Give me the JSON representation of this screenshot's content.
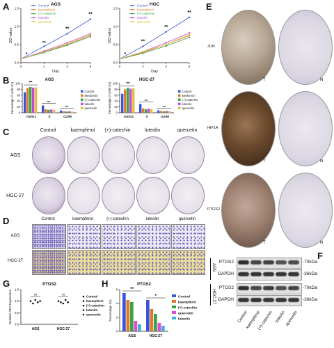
{
  "panel_labels": {
    "A": "A",
    "B": "B",
    "C": "C",
    "D": "D",
    "E": "E",
    "F": "F",
    "G": "G",
    "H": "H"
  },
  "panelA": {
    "left": {
      "title": "AGS",
      "ylabel": "OD value",
      "xlabel": "Day",
      "yticks": [
        "0.0",
        "0.5",
        "1.0",
        "1.5"
      ],
      "xticks": [
        "0",
        "2",
        "4",
        "6"
      ],
      "sig": [
        "*",
        "ns",
        "**",
        "**"
      ]
    },
    "right": {
      "title": "HGC",
      "ylabel": "OD value",
      "xlabel": "Day",
      "yticks": [
        "0.0",
        "0.5",
        "1.0",
        "1.5"
      ],
      "xticks": [
        "0",
        "2",
        "4",
        "6"
      ],
      "sig": [
        "*",
        "**",
        "**",
        "**"
      ]
    },
    "legend": [
      "Control",
      "kaempferol",
      "(+)-catechin",
      "luteolin",
      "quercetin"
    ],
    "colors": [
      "#3a54d6",
      "#e07a2a",
      "#3aa14a",
      "#c24ad6",
      "#e0c23a"
    ]
  },
  "panelB": {
    "left": {
      "title": "AGS",
      "ylabel": "Percentage of cells (%)",
      "yticks": [
        "0",
        "20",
        "40",
        "60",
        "80",
        "100"
      ],
      "categories": [
        "G0/G1",
        "S",
        "G2/M"
      ],
      "sig": [
        "**",
        "ns",
        "ns"
      ]
    },
    "right": {
      "title": "HGC-27",
      "ylabel": "Percentage of cells (%)",
      "yticks": [
        "0",
        "20",
        "40",
        "60",
        "80",
        "100"
      ],
      "categories": [
        "G0/G1",
        "S",
        "G2/M"
      ],
      "sig": [
        "**",
        "ns",
        "ns"
      ]
    },
    "legend": [
      "Control",
      "Metformin",
      "(+)-catechin",
      "luteolin",
      "quercetin"
    ],
    "colors": [
      "#3a54d6",
      "#e07a2a",
      "#3aa14a",
      "#c24ad6",
      "#e0c23a"
    ]
  },
  "panelC": {
    "columns": [
      "Control",
      "kaempferol",
      "(+)-catechin",
      "luteolin",
      "quercetin"
    ],
    "rows": [
      "AGS",
      "HGC-27"
    ]
  },
  "panelD": {
    "columns": [
      "Control",
      "kaempferol",
      "(+)-catechin",
      "luteolin",
      "quercetin"
    ],
    "rows": [
      "AGS",
      "HGC-27"
    ]
  },
  "panelE": {
    "rows": [
      "JUN",
      "HIF1A",
      "PTGS2"
    ],
    "T": "T",
    "N": "N"
  },
  "panelF": {
    "bands": [
      "PTGS2",
      "GAPDH",
      "PTGS2",
      "GAPDH"
    ],
    "kda": [
      "-70kDa",
      "-36kDa",
      "-70kDa",
      "-36kDa"
    ],
    "groups": [
      "AGS",
      "HGC-27"
    ],
    "lanes": [
      "Control",
      "kaempferol",
      "(+)-catechin",
      "luteolin",
      "quercetin"
    ]
  },
  "panelG": {
    "title": "PTGS2",
    "ylabel": "Relative RNA Expression",
    "yticks": [
      "0.0",
      "0.5",
      "1.0",
      "1.5"
    ],
    "categories": [
      "AGS",
      "HGC-27"
    ],
    "sig": [
      "ns",
      "ns"
    ],
    "legend": [
      "Control",
      "kaempferol",
      "(+)-catechin",
      "luteolin",
      "quercetin"
    ]
  },
  "panelH": {
    "title": "PTGS2",
    "ylabel": "Percentage (%)",
    "yticks": [
      "0",
      "2",
      "4",
      "6"
    ],
    "categories": [
      "AGS",
      "HGC-27"
    ],
    "sig": [
      "**",
      "*"
    ],
    "legend": [
      "Control",
      "kaempferol",
      "(+)-catechin",
      "quercetin",
      "luteolin"
    ],
    "colors": [
      "#3a54d6",
      "#e07a2a",
      "#3aa14a",
      "#e04ad6",
      "#3ab0e0"
    ]
  },
  "chart_data": [
    {
      "type": "line",
      "title": "AGS",
      "xlabel": "Day",
      "ylabel": "OD value",
      "x": [
        0,
        2,
        4,
        6
      ],
      "series": [
        {
          "name": "Control",
          "values": [
            0.1,
            0.45,
            0.8,
            1.2
          ]
        },
        {
          "name": "kaempferol",
          "values": [
            0.1,
            0.3,
            0.5,
            0.75
          ]
        },
        {
          "name": "(+)-catechin",
          "values": [
            0.1,
            0.28,
            0.48,
            0.72
          ]
        },
        {
          "name": "luteolin",
          "values": [
            0.1,
            0.32,
            0.55,
            0.8
          ]
        },
        {
          "name": "quercetin",
          "values": [
            0.1,
            0.3,
            0.52,
            0.78
          ]
        }
      ]
    },
    {
      "type": "line",
      "title": "HGC",
      "xlabel": "Day",
      "ylabel": "OD value",
      "x": [
        0,
        2,
        4,
        6
      ],
      "series": [
        {
          "name": "Control",
          "values": [
            0.1,
            0.45,
            0.85,
            1.25
          ]
        },
        {
          "name": "kaempferol",
          "values": [
            0.1,
            0.28,
            0.5,
            0.75
          ]
        },
        {
          "name": "(+)-catechin",
          "values": [
            0.1,
            0.26,
            0.46,
            0.7
          ]
        },
        {
          "name": "luteolin",
          "values": [
            0.1,
            0.3,
            0.55,
            0.82
          ]
        },
        {
          "name": "quercetin",
          "values": [
            0.1,
            0.3,
            0.5,
            0.78
          ]
        }
      ]
    },
    {
      "type": "bar",
      "title": "AGS",
      "ylabel": "Percentage of cells (%)",
      "categories": [
        "G0/G1",
        "S",
        "G2/M"
      ],
      "series": [
        {
          "name": "Control",
          "values": [
            70,
            25,
            8
          ]
        },
        {
          "name": "Metformin",
          "values": [
            85,
            12,
            5
          ]
        },
        {
          "name": "(+)-catechin",
          "values": [
            88,
            10,
            4
          ]
        },
        {
          "name": "luteolin",
          "values": [
            86,
            11,
            5
          ]
        },
        {
          "name": "quercetin",
          "values": [
            87,
            10,
            4
          ]
        }
      ]
    },
    {
      "type": "bar",
      "title": "HGC-27",
      "ylabel": "Percentage of cells (%)",
      "categories": [
        "G0/G1",
        "S",
        "G2/M"
      ],
      "series": [
        {
          "name": "Control",
          "values": [
            65,
            30,
            8
          ]
        },
        {
          "name": "Metformin",
          "values": [
            80,
            15,
            6
          ]
        },
        {
          "name": "(+)-catechin",
          "values": [
            85,
            12,
            5
          ]
        },
        {
          "name": "luteolin",
          "values": [
            82,
            14,
            6
          ]
        },
        {
          "name": "quercetin",
          "values": [
            84,
            12,
            5
          ]
        }
      ]
    },
    {
      "type": "scatter",
      "title": "PTGS2",
      "ylabel": "Relative RNA Expression",
      "categories": [
        "AGS",
        "HGC-27"
      ],
      "series": [
        {
          "name": "Control",
          "values": [
            1.0,
            1.0
          ]
        },
        {
          "name": "kaempferol",
          "values": [
            0.9,
            0.95
          ]
        },
        {
          "name": "(+)-catechin",
          "values": [
            1.05,
            0.9
          ]
        },
        {
          "name": "luteolin",
          "values": [
            0.95,
            1.05
          ]
        },
        {
          "name": "quercetin",
          "values": [
            1.0,
            0.95
          ]
        }
      ]
    },
    {
      "type": "bar",
      "title": "PTGS2",
      "ylabel": "Percentage (%)",
      "categories": [
        "AGS",
        "HGC-27"
      ],
      "series": [
        {
          "name": "Control",
          "values": [
            5.5,
            4.5
          ]
        },
        {
          "name": "kaempferol",
          "values": [
            4.5,
            3.2
          ]
        },
        {
          "name": "(+)-catechin",
          "values": [
            4.2,
            2.5
          ]
        },
        {
          "name": "quercetin",
          "values": [
            1.5,
            1.2
          ]
        },
        {
          "name": "luteolin",
          "values": [
            1.0,
            0.8
          ]
        }
      ]
    }
  ]
}
